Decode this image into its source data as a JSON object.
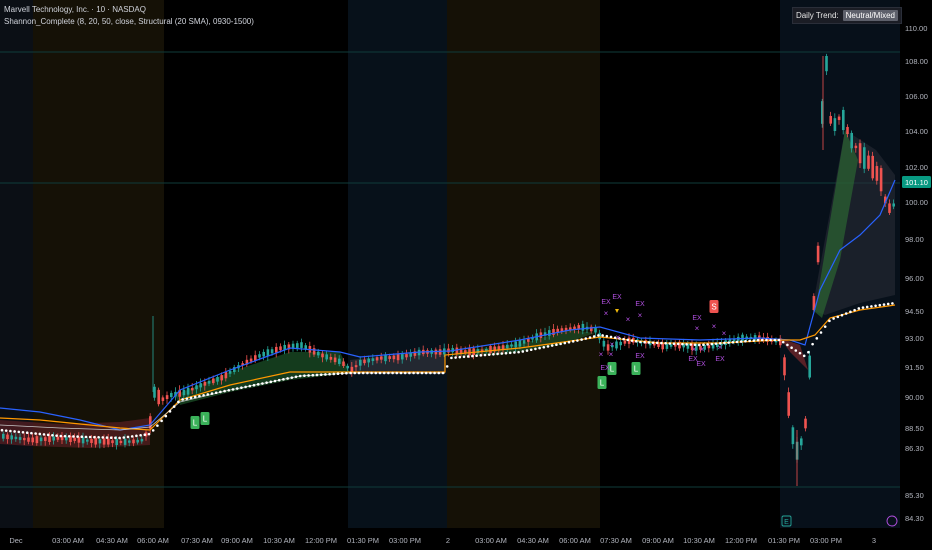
{
  "legend": {
    "title": "Marvell Technology, Inc. · 10 · NASDAQ",
    "indicator": "Shannon_Complete (8, 20, 50, close, Structural (20 SMA), 0930-1500)"
  },
  "trend": {
    "label": "Daily Trend:",
    "value": "Neutral/Mixed"
  },
  "chart_data": {
    "type": "candlestick",
    "title": "Marvell Technology, Inc. · 10 · NASDAQ",
    "xlabel": "",
    "ylabel": "",
    "ylim": [
      84.3,
      110.0
    ],
    "grid": false,
    "last_price": 101.1,
    "y_ticks": [
      "110.00",
      "108.00",
      "106.00",
      "104.00",
      "102.00",
      "100.00",
      "98.00",
      "96.00",
      "94.50",
      "93.00",
      "91.50",
      "90.00",
      "88.50",
      "86.30",
      "85.30",
      "84.30"
    ],
    "x_ticks": [
      "Dec",
      "03:00 AM",
      "04:30 AM",
      "06:00 AM",
      "07:30 AM",
      "09:00 AM",
      "10:30 AM",
      "12:00 PM",
      "01:30 PM",
      "03:00 PM",
      "2",
      "03:00 AM",
      "04:30 AM",
      "06:00 AM",
      "07:30 AM",
      "09:00 AM",
      "10:30 AM",
      "12:00 PM",
      "01:30 PM",
      "03:00 PM",
      "3"
    ],
    "session_bands": [
      {
        "from": 0,
        "to": 33,
        "color": "#0b0f15"
      },
      {
        "from": 33,
        "to": 164,
        "color": "#151106"
      },
      {
        "from": 348,
        "to": 447,
        "color": "#07111a"
      },
      {
        "from": 447,
        "to": 600,
        "color": "#151106"
      },
      {
        "from": 600,
        "to": 780,
        "color": "#000000"
      },
      {
        "from": 780,
        "to": 900,
        "color": "#07101a"
      }
    ],
    "signals": [
      {
        "label": "L",
        "x": 195,
        "y": 423,
        "color": "#3bb25a"
      },
      {
        "label": "L",
        "x": 205,
        "y": 419,
        "color": "#3bb25a"
      },
      {
        "label": "L",
        "x": 602,
        "y": 383,
        "color": "#3bb25a"
      },
      {
        "label": "L",
        "x": 612,
        "y": 369,
        "color": "#3bb25a"
      },
      {
        "label": "L",
        "x": 636,
        "y": 369,
        "color": "#3bb25a"
      },
      {
        "label": "S",
        "x": 714,
        "y": 307,
        "color": "#ef5350"
      }
    ],
    "exits": [
      {
        "label": "EX",
        "x": 606,
        "y": 304
      },
      {
        "label": "EX",
        "x": 617,
        "y": 299
      },
      {
        "label": "EX",
        "x": 640,
        "y": 306
      },
      {
        "label": "EX",
        "x": 605,
        "y": 370
      },
      {
        "label": "EX",
        "x": 640,
        "y": 358
      },
      {
        "label": "EX",
        "x": 697,
        "y": 320
      },
      {
        "label": "EX",
        "x": 693,
        "y": 361
      },
      {
        "label": "EX",
        "x": 701,
        "y": 366
      },
      {
        "label": "EX",
        "x": 720,
        "y": 361
      }
    ],
    "markers_x": [
      {
        "x": 606,
        "y": 316
      },
      {
        "x": 628,
        "y": 322
      },
      {
        "x": 640,
        "y": 318
      },
      {
        "x": 612,
        "y": 347
      },
      {
        "x": 618,
        "y": 340
      },
      {
        "x": 601,
        "y": 357
      },
      {
        "x": 611,
        "y": 357
      },
      {
        "x": 697,
        "y": 331
      },
      {
        "x": 714,
        "y": 329
      },
      {
        "x": 724,
        "y": 336
      },
      {
        "x": 694,
        "y": 352
      },
      {
        "x": 702,
        "y": 352
      },
      {
        "x": 720,
        "y": 350
      }
    ]
  }
}
